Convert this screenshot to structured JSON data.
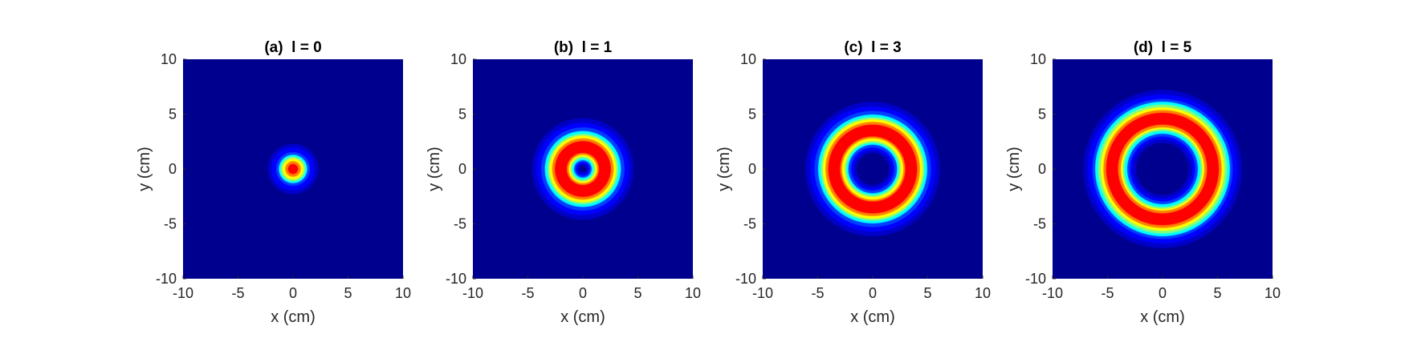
{
  "chart_data": [
    {
      "type": "heatmap",
      "title": "(a)  l = 0",
      "xlabel": "x (cm)",
      "ylabel": "y (cm)",
      "xlim": [
        -10,
        10
      ],
      "ylim": [
        -10,
        10
      ],
      "xticks": [
        -10,
        -5,
        0,
        5,
        10
      ],
      "yticks": [
        -10,
        -5,
        0,
        5,
        10
      ],
      "xtick_labels": [
        "-10",
        "-5",
        "0",
        "5",
        "10"
      ],
      "ytick_labels": [
        "-10",
        "-5",
        "0",
        "5",
        "10"
      ],
      "colormap": "jet",
      "l": 0,
      "ring_peak_radius_cm": 0,
      "beam_width_cm": 1.9
    },
    {
      "type": "heatmap",
      "title": "(b)  l = 1",
      "xlabel": "x (cm)",
      "ylabel": "y (cm)",
      "xlim": [
        -10,
        10
      ],
      "ylim": [
        -10,
        10
      ],
      "xticks": [
        -10,
        -5,
        0,
        5,
        10
      ],
      "yticks": [
        -10,
        -5,
        0,
        5,
        10
      ],
      "xtick_labels": [
        "-10",
        "-5",
        "0",
        "5",
        "10"
      ],
      "ytick_labels": [
        "-10",
        "-5",
        "0",
        "5",
        "10"
      ],
      "colormap": "jet",
      "l": 1,
      "ring_peak_radius_cm": 2.0,
      "beam_width_cm": 2.8
    },
    {
      "type": "heatmap",
      "title": "(c)  l = 3",
      "xlabel": "x (cm)",
      "ylabel": "y (cm)",
      "xlim": [
        -10,
        10
      ],
      "ylim": [
        -10,
        10
      ],
      "xticks": [
        -10,
        -5,
        0,
        5,
        10
      ],
      "yticks": [
        -10,
        -5,
        0,
        5,
        10
      ],
      "xtick_labels": [
        "-10",
        "-5",
        "0",
        "5",
        "10"
      ],
      "ytick_labels": [
        "-10",
        "-5",
        "0",
        "5",
        "10"
      ],
      "colormap": "jet",
      "l": 3,
      "ring_peak_radius_cm": 3.5,
      "beam_width_cm": 2.85
    },
    {
      "type": "heatmap",
      "title": "(d)  l = 5",
      "xlabel": "x (cm)",
      "ylabel": "y (cm)",
      "xlim": [
        -10,
        10
      ],
      "ylim": [
        -10,
        10
      ],
      "xticks": [
        -10,
        -5,
        0,
        5,
        10
      ],
      "yticks": [
        -10,
        -5,
        0,
        5,
        10
      ],
      "xtick_labels": [
        "-10",
        "-5",
        "0",
        "5",
        "10"
      ],
      "ytick_labels": [
        "-10",
        "-5",
        "0",
        "5",
        "10"
      ],
      "colormap": "jet",
      "l": 5,
      "ring_peak_radius_cm": 4.6,
      "beam_width_cm": 2.9
    }
  ]
}
